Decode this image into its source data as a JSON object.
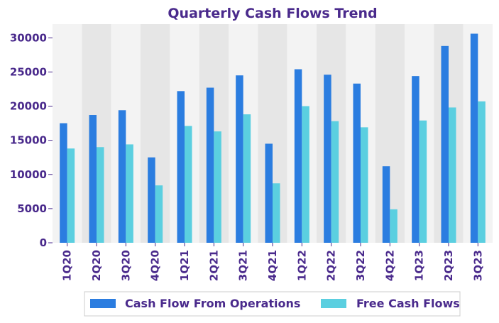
{
  "chart_data": {
    "type": "bar",
    "title": "Quarterly Cash Flows Trend",
    "xlabel": "",
    "ylabel": "",
    "categories": [
      "1Q20",
      "2Q20",
      "3Q20",
      "4Q20",
      "1Q21",
      "2Q21",
      "3Q21",
      "4Q21",
      "1Q22",
      "2Q22",
      "3Q22",
      "4Q22",
      "1Q23",
      "2Q23",
      "3Q23"
    ],
    "series": [
      {
        "name": "Cash Flow From Operations",
        "color": "#2b7de0",
        "values": [
          17500,
          18700,
          19400,
          12500,
          22200,
          22700,
          24500,
          14500,
          25400,
          24600,
          23300,
          11200,
          24400,
          28800,
          30600
        ]
      },
      {
        "name": "Free Cash Flows",
        "color": "#5bcfe0",
        "values": [
          13800,
          14000,
          14400,
          8400,
          17100,
          16300,
          18800,
          8700,
          20000,
          17800,
          16900,
          4900,
          17900,
          19800,
          20700
        ]
      }
    ],
    "yticks": [
      "0",
      "5000",
      "10000",
      "15000",
      "20000",
      "25000",
      "30000"
    ],
    "ylim": [
      0,
      32000
    ],
    "grid": false,
    "legend": "bottom-center",
    "colors": {
      "text": "#4a2a8c",
      "band_light": "#f3f3f3",
      "band_dark": "#e6e6e6",
      "axis": "#cccccc"
    }
  }
}
